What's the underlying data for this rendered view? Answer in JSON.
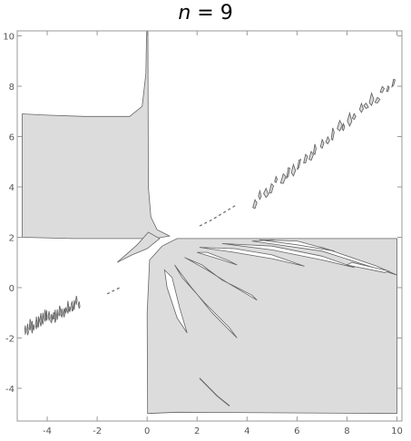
{
  "chart_data": {
    "type": "contour",
    "title_var": "n",
    "title_eq": " = ",
    "title_val": "9",
    "xlim": [
      -5.2,
      10.2
    ],
    "ylim": [
      -5.3,
      10.2
    ],
    "x_ticks": [
      -4,
      -2,
      0,
      2,
      4,
      6,
      8,
      10
    ],
    "y_ticks": [
      -4,
      -2,
      0,
      2,
      4,
      6,
      8,
      10
    ],
    "x_tick_labels": [
      "-4",
      "-2",
      "0",
      "2",
      "4",
      "6",
      "8",
      "10"
    ],
    "y_tick_labels": [
      "-4",
      "-2",
      "0",
      "2",
      "4",
      "6",
      "8",
      "10"
    ],
    "fill_color": "#dcdcdc",
    "line_color": "#666666",
    "shaded_regions": [
      {
        "name": "upper-left-region",
        "points": [
          [
            -5.0,
            2.0
          ],
          [
            -5.0,
            6.9
          ],
          [
            -4.0,
            6.85
          ],
          [
            -2.5,
            6.8
          ],
          [
            -0.7,
            6.8
          ],
          [
            -0.2,
            7.2
          ],
          [
            -0.05,
            8.5
          ],
          [
            -0.02,
            10.2
          ],
          [
            0.03,
            10.2
          ],
          [
            0.05,
            4.0
          ],
          [
            0.15,
            2.8
          ],
          [
            0.4,
            2.3
          ],
          [
            0.9,
            2.05
          ],
          [
            0.3,
            1.95
          ],
          [
            -3.0,
            1.95
          ],
          [
            -5.0,
            2.0
          ]
        ]
      },
      {
        "name": "lower-right-region",
        "points": [
          [
            0.05,
            -5.0
          ],
          [
            1.2,
            -4.95
          ],
          [
            10.0,
            -5.0
          ],
          [
            10.0,
            1.95
          ],
          [
            1.2,
            1.95
          ],
          [
            0.6,
            1.65
          ],
          [
            0.1,
            1.1
          ],
          [
            0.0,
            -1.0
          ],
          [
            0.02,
            -5.0
          ]
        ]
      },
      {
        "name": "central-spike",
        "points": [
          [
            -1.2,
            1.0
          ],
          [
            -0.6,
            1.3
          ],
          [
            0.0,
            1.55
          ],
          [
            0.5,
            1.95
          ],
          [
            0.05,
            2.2
          ],
          [
            -0.4,
            1.7
          ]
        ]
      }
    ],
    "white_lobes": [
      {
        "name": "lobe-1",
        "points": [
          [
            0.7,
            0.7
          ],
          [
            1.0,
            0.4
          ],
          [
            1.3,
            -0.8
          ],
          [
            1.6,
            -1.8
          ],
          [
            1.2,
            -1.2
          ],
          [
            0.8,
            0.0
          ]
        ]
      },
      {
        "name": "lobe-2",
        "points": [
          [
            1.1,
            0.9
          ],
          [
            1.7,
            0.1
          ],
          [
            2.6,
            -1.0
          ],
          [
            3.6,
            -2.0
          ],
          [
            3.3,
            -1.6
          ],
          [
            2.3,
            -0.6
          ],
          [
            1.4,
            0.4
          ]
        ]
      },
      {
        "name": "lobe-3",
        "points": [
          [
            1.5,
            1.2
          ],
          [
            2.4,
            0.7
          ],
          [
            3.2,
            0.2
          ],
          [
            4.4,
            -0.5
          ],
          [
            4.2,
            -0.3
          ],
          [
            3.0,
            0.3
          ],
          [
            2.2,
            0.9
          ]
        ]
      },
      {
        "name": "lobe-4",
        "points": [
          [
            2.0,
            1.4
          ],
          [
            3.0,
            1.1
          ],
          [
            3.6,
            0.9
          ],
          [
            3.2,
            1.1
          ],
          [
            2.4,
            1.4
          ]
        ]
      },
      {
        "name": "lobe-5",
        "points": [
          [
            2.1,
            1.6
          ],
          [
            3.5,
            1.4
          ],
          [
            5.0,
            1.15
          ],
          [
            6.3,
            0.85
          ],
          [
            5.0,
            1.3
          ],
          [
            3.5,
            1.55
          ]
        ]
      },
      {
        "name": "lobe-6",
        "points": [
          [
            3.0,
            1.75
          ],
          [
            5.0,
            1.5
          ],
          [
            7.0,
            1.1
          ],
          [
            8.3,
            0.8
          ],
          [
            7.0,
            1.25
          ],
          [
            5.0,
            1.65
          ]
        ]
      },
      {
        "name": "lobe-7",
        "points": [
          [
            4.2,
            1.85
          ],
          [
            7.0,
            1.45
          ],
          [
            10.0,
            0.5
          ],
          [
            9.2,
            0.85
          ],
          [
            7.0,
            1.6
          ],
          [
            5.0,
            1.9
          ]
        ]
      },
      {
        "name": "lobe-8",
        "points": [
          [
            8.0,
            0.9
          ],
          [
            9.5,
            0.6
          ],
          [
            9.7,
            0.65
          ],
          [
            8.2,
            1.0
          ]
        ]
      },
      {
        "name": "lobe-9",
        "points": [
          [
            4.5,
            1.9
          ],
          [
            6.0,
            1.7
          ],
          [
            7.5,
            1.45
          ],
          [
            6.0,
            1.85
          ]
        ]
      }
    ],
    "noisy_bands": [
      {
        "name": "upper-right-band",
        "x_start": 4.2,
        "x_end": 10.0,
        "slope": 0.85,
        "intercept": -0.28,
        "width": 0.35
      },
      {
        "name": "lower-left-band",
        "x_start": -4.9,
        "x_end": -2.7,
        "slope": 0.48,
        "intercept": 0.68,
        "width": 0.35
      }
    ],
    "contour_lines": [
      {
        "name": "dash-upper",
        "points": [
          [
            2.1,
            2.45
          ],
          [
            2.6,
            2.7
          ],
          [
            3.1,
            3.0
          ],
          [
            3.6,
            3.3
          ]
        ]
      },
      {
        "name": "dash-lower",
        "points": [
          [
            -1.6,
            -0.25
          ],
          [
            -1.1,
            0.0
          ]
        ]
      },
      {
        "name": "bottom-stroke",
        "points": [
          [
            2.1,
            -3.6
          ],
          [
            2.8,
            -4.3
          ],
          [
            3.3,
            -4.7
          ]
        ]
      }
    ]
  }
}
